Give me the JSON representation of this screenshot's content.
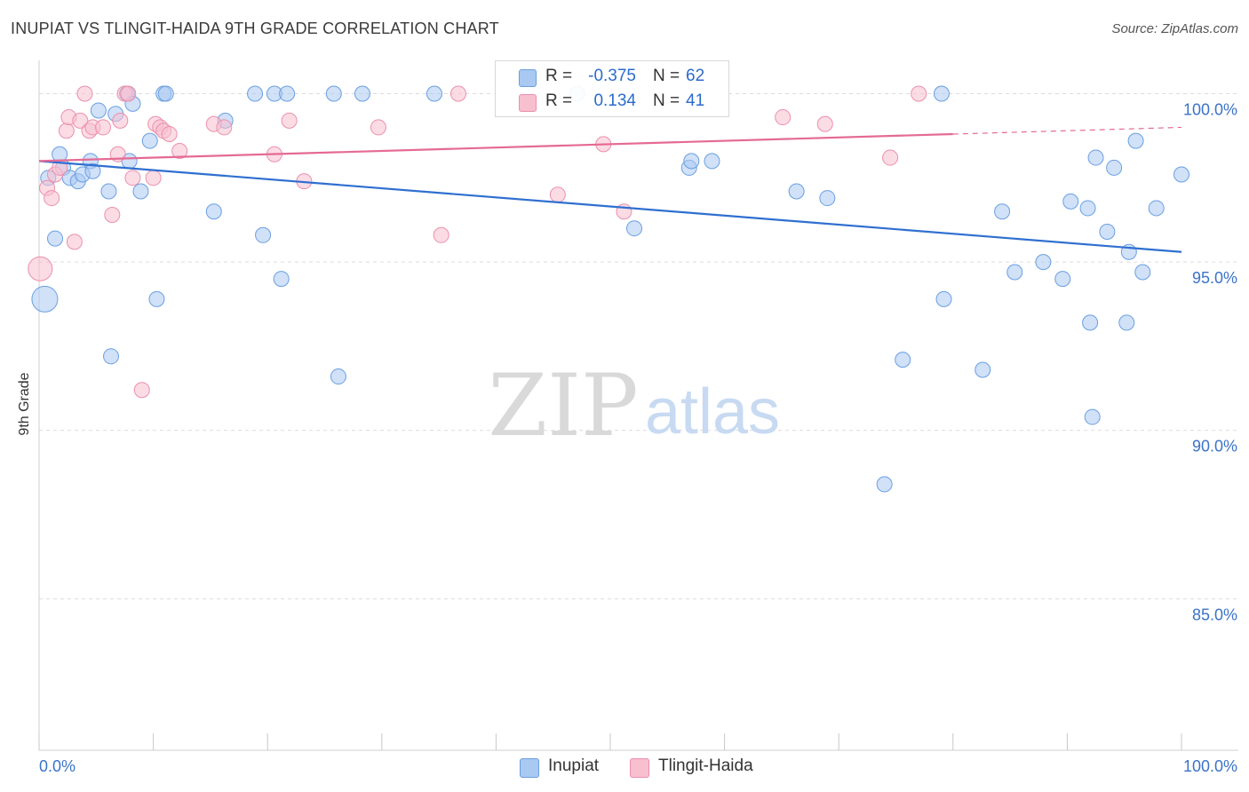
{
  "header": {
    "title": "INUPIAT VS TLINGIT-HAIDA 9TH GRADE CORRELATION CHART",
    "source": "Source: ZipAtlas.com"
  },
  "colors": {
    "blue_fill": "#a9c8f2",
    "blue_stroke": "#6a9fe0",
    "blue_line": "#2f6fd0",
    "pink_fill": "#f7bfd0",
    "pink_stroke": "#ec8fac",
    "pink_line": "#e46a94",
    "tick_label": "#3b73c8",
    "grid": "#dcdcdc"
  },
  "watermark": {
    "zip": "ZIP",
    "atlas": "atlas"
  },
  "legend_top": {
    "rows": [
      {
        "r_label": "R =",
        "r_value": "-0.375",
        "n_label": "N =",
        "n_value": "62"
      },
      {
        "r_label": "R =",
        "r_value": "0.134",
        "n_label": "N =",
        "n_value": "41"
      }
    ]
  },
  "legend_bottom": {
    "items": [
      "Inupiat",
      "Tlingit-Haida"
    ]
  },
  "chart_data": {
    "type": "scatter",
    "title": "INUPIAT VS TLINGIT-HAIDA 9TH GRADE CORRELATION CHART",
    "xlabel": "",
    "ylabel": "9th Grade",
    "xlim": [
      0,
      100
    ],
    "ylim": [
      80.5,
      101.2
    ],
    "x_tick_labels": [
      "0.0%",
      "100.0%"
    ],
    "y_ticks": [
      85,
      90,
      95,
      100
    ],
    "y_tick_labels": [
      "85.0%",
      "90.0%",
      "95.0%",
      "100.0%"
    ],
    "grid": "horizontal dashed",
    "legend": "bottom-center",
    "series": [
      {
        "name": "Inupiat",
        "color": "#a9c8f2",
        "trend": {
          "x": [
            0,
            100
          ],
          "y": [
            98.0,
            95.3
          ]
        },
        "points": [
          [
            0.5,
            93.9,
            26
          ],
          [
            0.8,
            97.5,
            14
          ],
          [
            1.4,
            95.7,
            14
          ],
          [
            1.8,
            98.2,
            14
          ],
          [
            2.1,
            97.8,
            14
          ],
          [
            2.7,
            97.5,
            14
          ],
          [
            3.4,
            97.4,
            14
          ],
          [
            3.8,
            97.6,
            14
          ],
          [
            4.5,
            98.0,
            14
          ],
          [
            4.7,
            97.7,
            14
          ],
          [
            5.2,
            99.5,
            14
          ],
          [
            6.1,
            97.1,
            14
          ],
          [
            6.3,
            92.2,
            14
          ],
          [
            6.7,
            99.4,
            14
          ],
          [
            7.7,
            100.0,
            14
          ],
          [
            7.9,
            98.0,
            14
          ],
          [
            8.2,
            99.7,
            14
          ],
          [
            8.9,
            97.1,
            14
          ],
          [
            9.7,
            98.6,
            14
          ],
          [
            10.3,
            93.9,
            14
          ],
          [
            10.9,
            100.0,
            14
          ],
          [
            11.1,
            100.0,
            14
          ],
          [
            15.3,
            96.5,
            14
          ],
          [
            16.3,
            99.2,
            14
          ],
          [
            18.9,
            100.0,
            14
          ],
          [
            19.6,
            95.8,
            14
          ],
          [
            20.6,
            100.0,
            14
          ],
          [
            21.2,
            94.5,
            14
          ],
          [
            21.7,
            100.0,
            14
          ],
          [
            25.8,
            100.0,
            14
          ],
          [
            26.2,
            91.6,
            14
          ],
          [
            28.3,
            100.0,
            14
          ],
          [
            34.6,
            100.0,
            14
          ],
          [
            47.1,
            100.0,
            14
          ],
          [
            52.1,
            96.0,
            14
          ],
          [
            56.9,
            97.8,
            14
          ],
          [
            57.1,
            98.0,
            14
          ],
          [
            58.9,
            98.0,
            14
          ],
          [
            66.3,
            97.1,
            14
          ],
          [
            69.0,
            96.9,
            14
          ],
          [
            74.0,
            88.4,
            14
          ],
          [
            75.6,
            92.1,
            14
          ],
          [
            79.0,
            100.0,
            14
          ],
          [
            79.2,
            93.9,
            14
          ],
          [
            82.6,
            91.8,
            14
          ],
          [
            84.3,
            96.5,
            14
          ],
          [
            85.4,
            94.7,
            14
          ],
          [
            87.9,
            95.0,
            14
          ],
          [
            89.6,
            94.5,
            14
          ],
          [
            90.3,
            96.8,
            14
          ],
          [
            91.8,
            96.6,
            14
          ],
          [
            92.0,
            93.2,
            14
          ],
          [
            92.2,
            90.4,
            14
          ],
          [
            92.5,
            98.1,
            14
          ],
          [
            93.5,
            95.9,
            14
          ],
          [
            94.1,
            97.8,
            14
          ],
          [
            95.2,
            93.2,
            14
          ],
          [
            95.4,
            95.3,
            14
          ],
          [
            96.0,
            98.6,
            14
          ],
          [
            96.6,
            94.7,
            14
          ],
          [
            97.8,
            96.6,
            14
          ],
          [
            100.0,
            97.6,
            14
          ]
        ]
      },
      {
        "name": "Tlingit-Haida",
        "color": "#f7bfd0",
        "trend": {
          "x": [
            0,
            100
          ],
          "y": [
            98.0,
            99.0
          ]
        },
        "points": [
          [
            0.1,
            94.8,
            24
          ],
          [
            0.7,
            97.2,
            14
          ],
          [
            1.1,
            96.9,
            14
          ],
          [
            1.4,
            97.6,
            14
          ],
          [
            1.8,
            97.8,
            14
          ],
          [
            2.4,
            98.9,
            14
          ],
          [
            2.6,
            99.3,
            14
          ],
          [
            3.1,
            95.6,
            14
          ],
          [
            3.6,
            99.2,
            14
          ],
          [
            4.0,
            100.0,
            14
          ],
          [
            4.4,
            98.9,
            14
          ],
          [
            4.7,
            99.0,
            14
          ],
          [
            5.6,
            99.0,
            14
          ],
          [
            6.4,
            96.4,
            14
          ],
          [
            6.9,
            98.2,
            14
          ],
          [
            7.1,
            99.2,
            14
          ],
          [
            7.5,
            100.0,
            14
          ],
          [
            7.8,
            100.0,
            14
          ],
          [
            8.2,
            97.5,
            14
          ],
          [
            9.0,
            91.2,
            14
          ],
          [
            10.0,
            97.5,
            14
          ],
          [
            10.2,
            99.1,
            14
          ],
          [
            10.6,
            99.0,
            14
          ],
          [
            10.9,
            98.9,
            14
          ],
          [
            11.4,
            98.8,
            14
          ],
          [
            12.3,
            98.3,
            14
          ],
          [
            15.3,
            99.1,
            14
          ],
          [
            16.2,
            99.0,
            14
          ],
          [
            20.6,
            98.2,
            14
          ],
          [
            21.9,
            99.2,
            14
          ],
          [
            23.2,
            97.4,
            14
          ],
          [
            29.7,
            99.0,
            14
          ],
          [
            35.2,
            95.8,
            14
          ],
          [
            36.7,
            100.0,
            14
          ],
          [
            45.4,
            97.0,
            14
          ],
          [
            49.4,
            98.5,
            14
          ],
          [
            51.2,
            96.5,
            14
          ],
          [
            65.1,
            99.3,
            14
          ],
          [
            68.8,
            99.1,
            14
          ],
          [
            74.5,
            98.1,
            14
          ],
          [
            77.0,
            100.0,
            14
          ]
        ]
      }
    ]
  }
}
